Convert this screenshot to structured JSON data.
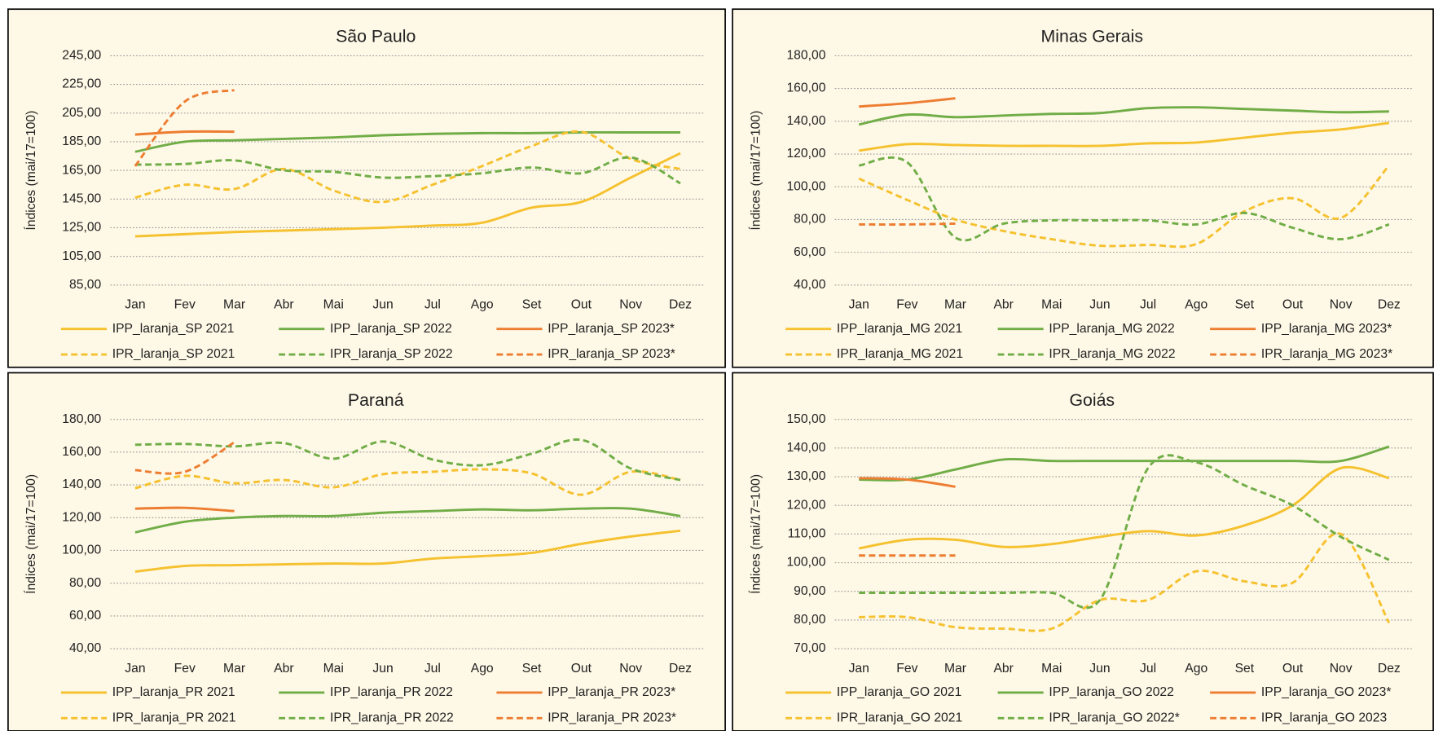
{
  "chart_data": [
    {
      "type": "line",
      "title": "São Paulo",
      "y_label": "Índices (mai/17=100)",
      "categories": [
        "Jan",
        "Fev",
        "Mar",
        "Abr",
        "Mai",
        "Jun",
        "Jul",
        "Ago",
        "Set",
        "Out",
        "Nov",
        "Dez"
      ],
      "ylim": [
        85,
        245
      ],
      "yticks": [
        {
          "value": 85,
          "label": "85,00"
        },
        {
          "value": 105,
          "label": "105,00"
        },
        {
          "value": 125,
          "label": "125,00"
        },
        {
          "value": 145,
          "label": "145,00"
        },
        {
          "value": 165,
          "label": "165,00"
        },
        {
          "value": 185,
          "label": "185,00"
        },
        {
          "value": 205,
          "label": "205,00"
        },
        {
          "value": 225,
          "label": "225,00"
        },
        {
          "value": 245,
          "label": "245,00"
        }
      ],
      "grid": true,
      "series": [
        {
          "name": "IPP_laranja_SP 2021",
          "color": "#f5c12e",
          "dash": "solid",
          "values": [
            119,
            120.5,
            122,
            123,
            124,
            125,
            126.5,
            128.5,
            139,
            143,
            160,
            177
          ]
        },
        {
          "name": "IPP_laranja_SP 2022",
          "color": "#70ad47",
          "dash": "solid",
          "values": [
            178,
            185,
            186,
            187,
            188,
            189.5,
            190.5,
            191,
            191,
            191.5,
            191.5,
            191.5
          ]
        },
        {
          "name": "IPP_laranja_SP 2023*",
          "color": "#ed7d31",
          "dash": "solid",
          "values": [
            190,
            192,
            192,
            null,
            null,
            null,
            null,
            null,
            null,
            null,
            null,
            null
          ]
        },
        {
          "name": "IPR_laranja_SP 2021",
          "color": "#f5c12e",
          "dash": "dashed",
          "values": [
            146,
            155,
            152,
            166,
            151,
            143,
            155,
            168,
            182,
            192,
            173,
            166
          ]
        },
        {
          "name": "IPR_laranja_SP 2022",
          "color": "#70ad47",
          "dash": "dashed",
          "values": [
            169,
            169.5,
            172,
            165,
            164,
            160,
            161,
            163,
            167,
            163,
            174,
            156
          ]
        },
        {
          "name": "IPR_laranja_SP 2023*",
          "color": "#ed7d31",
          "dash": "dashed",
          "values": [
            168,
            213,
            221,
            null,
            null,
            null,
            null,
            null,
            null,
            null,
            null,
            null
          ]
        }
      ]
    },
    {
      "type": "line",
      "title": "Minas Gerais",
      "y_label": "Índices (mai/17=100)",
      "categories": [
        "Jan",
        "Fev",
        "Mar",
        "Abr",
        "Mai",
        "Jun",
        "Jul",
        "Ago",
        "Set",
        "Out",
        "Nov",
        "Dez"
      ],
      "ylim": [
        40,
        180
      ],
      "yticks": [
        {
          "value": 40,
          "label": "40,00"
        },
        {
          "value": 60,
          "label": "60,00"
        },
        {
          "value": 80,
          "label": "80,00"
        },
        {
          "value": 100,
          "label": "100,00"
        },
        {
          "value": 120,
          "label": "120,00"
        },
        {
          "value": 140,
          "label": "140,00"
        },
        {
          "value": 160,
          "label": "160,00"
        },
        {
          "value": 180,
          "label": "180,00"
        }
      ],
      "grid": true,
      "series": [
        {
          "name": "IPP_laranja_MG 2021",
          "color": "#f5c12e",
          "dash": "solid",
          "values": [
            122,
            126,
            125.5,
            125,
            125,
            125,
            126.5,
            127,
            130,
            133,
            135,
            139
          ]
        },
        {
          "name": "IPP_laranja_MG 2022",
          "color": "#70ad47",
          "dash": "solid",
          "values": [
            138,
            144,
            142.5,
            143.5,
            144.5,
            145,
            148,
            148.5,
            147.5,
            146.5,
            145.5,
            146
          ]
        },
        {
          "name": "IPP_laranja_MG 2023*",
          "color": "#ed7d31",
          "dash": "solid",
          "values": [
            149,
            151,
            154,
            null,
            null,
            null,
            null,
            null,
            null,
            null,
            null,
            null
          ]
        },
        {
          "name": "IPR_laranja_MG 2021",
          "color": "#f5c12e",
          "dash": "dashed",
          "values": [
            105,
            92,
            80,
            73,
            68,
            64,
            64.5,
            65,
            85,
            93,
            81,
            113
          ]
        },
        {
          "name": "IPR_laranja_MG 2022",
          "color": "#70ad47",
          "dash": "dashed",
          "values": [
            113,
            115,
            69,
            77.5,
            79.5,
            79.5,
            79.5,
            77,
            84,
            75,
            68,
            77
          ]
        },
        {
          "name": "IPR_laranja_MG 2023*",
          "color": "#ed7d31",
          "dash": "dashed",
          "values": [
            77,
            77,
            77.5,
            null,
            null,
            null,
            null,
            null,
            null,
            null,
            null,
            null
          ]
        }
      ]
    },
    {
      "type": "line",
      "title": "Paraná",
      "y_label": "Índices (mai/17=100)",
      "categories": [
        "Jan",
        "Fev",
        "Mar",
        "Abr",
        "Mai",
        "Jun",
        "Jul",
        "Ago",
        "Set",
        "Out",
        "Nov",
        "Dez"
      ],
      "ylim": [
        40,
        180
      ],
      "yticks": [
        {
          "value": 40,
          "label": "40,00"
        },
        {
          "value": 60,
          "label": "60,00"
        },
        {
          "value": 80,
          "label": "80,00"
        },
        {
          "value": 100,
          "label": "100,00"
        },
        {
          "value": 120,
          "label": "120,00"
        },
        {
          "value": 140,
          "label": "140,00"
        },
        {
          "value": 160,
          "label": "160,00"
        },
        {
          "value": 180,
          "label": "180,00"
        }
      ],
      "grid": true,
      "series": [
        {
          "name": "IPP_laranja_PR 2021",
          "color": "#f5c12e",
          "dash": "solid",
          "values": [
            87,
            90.5,
            91,
            91.5,
            92,
            92,
            95,
            96.5,
            98.5,
            104,
            108.5,
            112
          ]
        },
        {
          "name": "IPP_laranja_PR 2022",
          "color": "#70ad47",
          "dash": "solid",
          "values": [
            111,
            117.5,
            120,
            121,
            121,
            123,
            124,
            125,
            124.5,
            125.5,
            125.5,
            121
          ]
        },
        {
          "name": "IPP_laranja_PR 2023*",
          "color": "#ed7d31",
          "dash": "solid",
          "values": [
            125.5,
            126,
            124,
            null,
            null,
            null,
            null,
            null,
            null,
            null,
            null,
            null
          ]
        },
        {
          "name": "IPR_laranja_PR 2021",
          "color": "#f5c12e",
          "dash": "dashed",
          "values": [
            138,
            145.5,
            141,
            143,
            138.5,
            146.5,
            148,
            149.5,
            147,
            134,
            148,
            143
          ]
        },
        {
          "name": "IPR_laranja_PR 2022",
          "color": "#70ad47",
          "dash": "dashed",
          "values": [
            164.5,
            165,
            163.5,
            165.5,
            156,
            166.5,
            155.5,
            152,
            159,
            167.5,
            150,
            143
          ]
        },
        {
          "name": "IPR_laranja_PR 2023*",
          "color": "#ed7d31",
          "dash": "dashed",
          "values": [
            149,
            148,
            166,
            null,
            null,
            null,
            null,
            null,
            null,
            null,
            null,
            null
          ]
        }
      ]
    },
    {
      "type": "line",
      "title": "Goiás",
      "y_label": "Índices (mai/17=100)",
      "categories": [
        "Jan",
        "Fev",
        "Mar",
        "Abr",
        "Mai",
        "Jun",
        "Jul",
        "Ago",
        "Set",
        "Out",
        "Nov",
        "Dez"
      ],
      "ylim": [
        70,
        150
      ],
      "yticks": [
        {
          "value": 70,
          "label": "70,00"
        },
        {
          "value": 80,
          "label": "80,00"
        },
        {
          "value": 90,
          "label": "90,00"
        },
        {
          "value": 100,
          "label": "100,00"
        },
        {
          "value": 110,
          "label": "110,00"
        },
        {
          "value": 120,
          "label": "120,00"
        },
        {
          "value": 130,
          "label": "130,00"
        },
        {
          "value": 140,
          "label": "140,00"
        },
        {
          "value": 150,
          "label": "150,00"
        }
      ],
      "grid": true,
      "series": [
        {
          "name": "IPP_laranja_GO 2021",
          "color": "#f5c12e",
          "dash": "solid",
          "values": [
            105,
            108,
            108,
            105.5,
            106.5,
            109,
            111,
            109.5,
            113,
            120,
            133,
            129.5
          ]
        },
        {
          "name": "IPP_laranja_GO 2022",
          "color": "#70ad47",
          "dash": "solid",
          "values": [
            129,
            129,
            132.5,
            136,
            135.5,
            135.5,
            135.5,
            135.5,
            135.5,
            135.5,
            135.5,
            140.5
          ]
        },
        {
          "name": "IPP_laranja_GO 2023*",
          "color": "#ed7d31",
          "dash": "solid",
          "values": [
            129.5,
            129,
            126.5,
            null,
            null,
            null,
            null,
            null,
            null,
            null,
            null,
            null
          ]
        },
        {
          "name": "IPR_laranja_GO 2021",
          "color": "#f5c12e",
          "dash": "dashed",
          "values": [
            81,
            81,
            77.5,
            77,
            77,
            87,
            87,
            97,
            93.5,
            93,
            110,
            79
          ]
        },
        {
          "name": "IPR_laranja_GO 2022*",
          "color": "#70ad47",
          "dash": "dashed",
          "values": [
            89.5,
            89.5,
            89.5,
            89.5,
            89.5,
            87,
            133,
            135,
            127,
            120,
            109,
            101
          ]
        },
        {
          "name": "IPR_laranja_GO 2023",
          "color": "#ed7d31",
          "dash": "dashed",
          "values": [
            102.5,
            102.5,
            102.5,
            null,
            null,
            null,
            null,
            null,
            null,
            null,
            null,
            null
          ]
        }
      ]
    }
  ]
}
